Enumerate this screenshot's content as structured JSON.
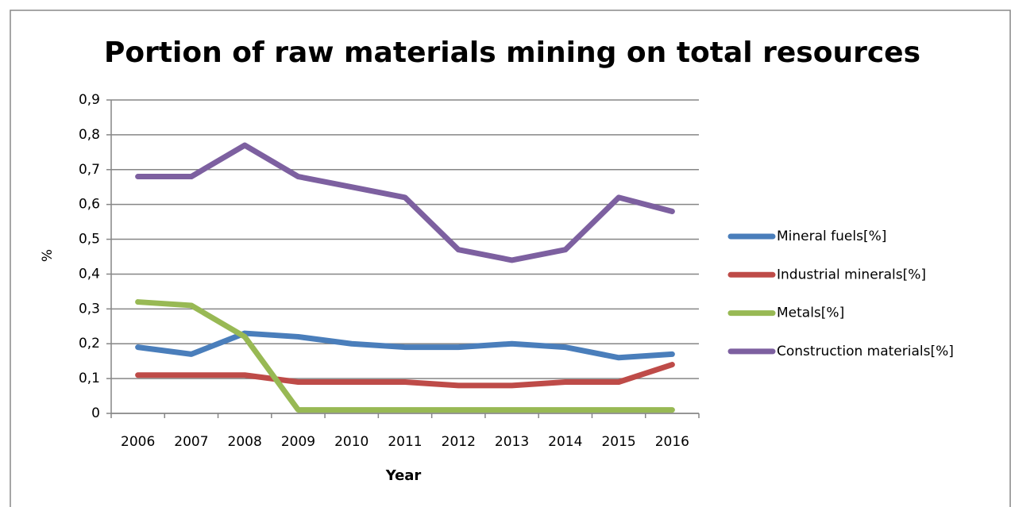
{
  "chart_data": {
    "type": "line",
    "title": "Portion of raw materials mining on total resources",
    "x_label": "Year",
    "y_label": "%",
    "categories": [
      "2006",
      "2007",
      "2008",
      "2009",
      "2010",
      "2011",
      "2012",
      "2013",
      "2014",
      "2015",
      "2016"
    ],
    "series": [
      {
        "name": "Mineral fuels[%]",
        "color": "#4a7ebb",
        "values": [
          0.19,
          0.17,
          0.23,
          0.22,
          0.2,
          0.19,
          0.19,
          0.2,
          0.19,
          0.16,
          0.17
        ]
      },
      {
        "name": "Industrial minerals[%]",
        "color": "#be4b48",
        "values": [
          0.11,
          0.11,
          0.11,
          0.09,
          0.09,
          0.09,
          0.08,
          0.08,
          0.09,
          0.09,
          0.14
        ]
      },
      {
        "name": "Metals[%]",
        "color": "#98b954",
        "values": [
          0.32,
          0.31,
          0.22,
          0.01,
          0.01,
          0.01,
          0.01,
          0.01,
          0.01,
          0.01,
          0.01
        ]
      },
      {
        "name": "Construction materials[%]",
        "color": "#7d60a0",
        "values": [
          0.68,
          0.68,
          0.77,
          0.68,
          0.65,
          0.62,
          0.47,
          0.44,
          0.47,
          0.62,
          0.58
        ]
      }
    ],
    "ylim": [
      0,
      0.9
    ],
    "yticks": [
      0,
      {
        "value": 0.1,
        "label": "0,1"
      },
      {
        "value": 0.2,
        "label": "0,2"
      },
      {
        "value": 0.3,
        "label": "0,3"
      },
      {
        "value": 0.4,
        "label": "0,4"
      },
      {
        "value": 0.5,
        "label": "0,5"
      },
      {
        "value": 0.6,
        "label": "0,6"
      },
      {
        "value": 0.7,
        "label": "0,7"
      },
      {
        "value": 0.8,
        "label": "0,8"
      },
      {
        "value": 0.9,
        "label": "0,9"
      }
    ],
    "grid": true,
    "legend": "right"
  }
}
